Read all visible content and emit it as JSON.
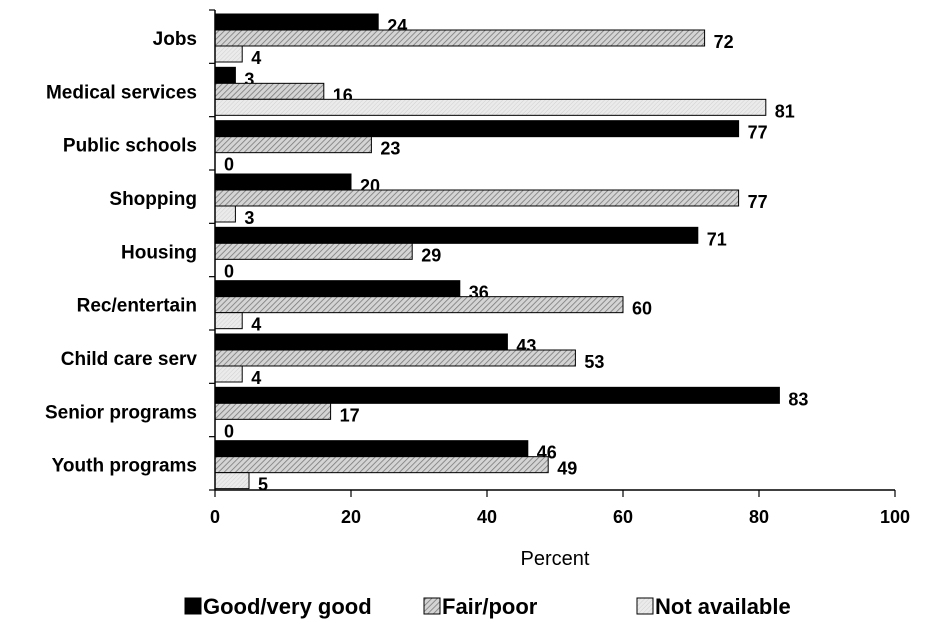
{
  "chart_data": {
    "type": "bar",
    "orientation": "horizontal",
    "categories": [
      "Jobs",
      "Medical services",
      "Public schools",
      "Shopping",
      "Housing",
      "Rec/entertain",
      "Child care serv",
      "Senior programs",
      "Youth programs"
    ],
    "series": [
      {
        "name": "Good/very good",
        "values": [
          24,
          3,
          77,
          20,
          71,
          36,
          43,
          83,
          46
        ],
        "color": "#000000",
        "pattern": "solid"
      },
      {
        "name": "Fair/poor",
        "values": [
          72,
          16,
          23,
          77,
          29,
          60,
          53,
          17,
          49
        ],
        "color": "#b8b8b8",
        "pattern": "diagonal-hatch"
      },
      {
        "name": "Not available",
        "values": [
          4,
          81,
          0,
          3,
          0,
          4,
          4,
          0,
          5
        ],
        "color": "#e0e0e0",
        "pattern": "light"
      }
    ],
    "xlabel": "Percent",
    "xlim": [
      0,
      100
    ],
    "xticks": [
      0,
      20,
      40,
      60,
      80,
      100
    ],
    "grid": false,
    "legend_position": "bottom"
  }
}
